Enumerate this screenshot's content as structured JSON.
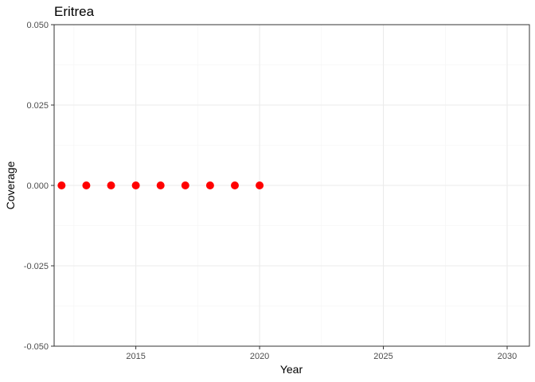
{
  "chart_data": {
    "type": "scatter",
    "title": "Eritrea",
    "xlabel": "Year",
    "ylabel": "Coverage",
    "xlim": [
      2011.7,
      2030.9
    ],
    "ylim": [
      -0.05,
      0.05
    ],
    "x_ticks": [
      2015,
      2020,
      2025,
      2030
    ],
    "y_ticks": [
      -0.05,
      -0.025,
      0.0,
      0.025,
      0.05
    ],
    "x_tick_labels": [
      "2015",
      "2020",
      "2025",
      "2030"
    ],
    "y_tick_labels": [
      "-0.050",
      "-0.025",
      "0.000",
      "0.025",
      "0.050"
    ],
    "grid": true,
    "point_color": "#ff0000",
    "series": [
      {
        "x": [
          2012,
          2013,
          2014,
          2015,
          2016,
          2017,
          2018,
          2019,
          2020
        ],
        "y": [
          0,
          0,
          0,
          0,
          0,
          0,
          0,
          0,
          0
        ]
      }
    ]
  }
}
